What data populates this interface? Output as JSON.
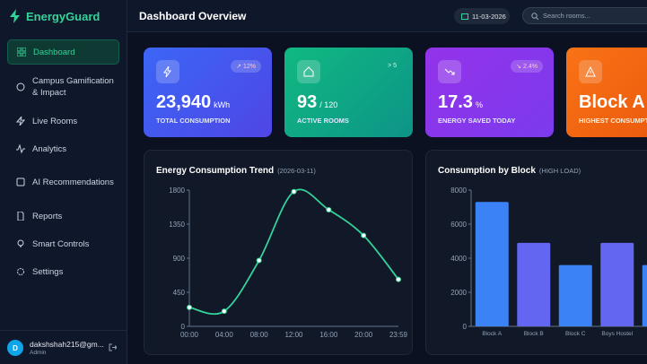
{
  "sidebar": {
    "brand": "EnergyGuard",
    "nav": [
      "Dashboard",
      "Campus Gamification & Impact",
      "Live Rooms",
      "Analytics",
      "AI Recommendations",
      "Reports",
      "Smart Controls",
      "Settings"
    ],
    "user": {
      "initial": "D",
      "email": "dakshshah215@gm...",
      "role": "Admin"
    }
  },
  "header": {
    "title": "Dashboard Overview",
    "date": "11-03-2026",
    "search": "Search rooms..."
  },
  "cards": [
    {
      "value": "23,940",
      "unit": "kWh",
      "label": "TOTAL CONSUMPTION",
      "badge": "12%"
    },
    {
      "value": "93",
      "unit": "/ 120",
      "label": "ACTIVE ROOMS",
      "badge": "> 5"
    },
    {
      "value": "17.3",
      "unit": "%",
      "label": "ENERGY SAVED TODAY",
      "badge": "2.4%"
    },
    {
      "value": "Block A",
      "label": "HIGHEST CONSUMPTION"
    }
  ],
  "chart_data": [
    {
      "type": "line",
      "title": "Energy Consumption Trend",
      "subtitle": "(2026-03-11)",
      "categories": [
        "00:00",
        "04:00",
        "08:00",
        "12:00",
        "16:00",
        "20:00",
        "23:59"
      ],
      "values": [
        250,
        200,
        870,
        1780,
        1540,
        1200,
        620
      ],
      "color": "#34d399",
      "ylim": [
        0,
        1800
      ],
      "yticks": [
        0,
        450,
        900,
        1350,
        1800
      ]
    },
    {
      "type": "bar",
      "title": "Consumption by Block",
      "subtitle": "(HIGH LOAD)",
      "categories": [
        "Block A",
        "Block B",
        "Block C",
        "Boys Hostel",
        null
      ],
      "values": [
        7300,
        4900,
        3600,
        4900,
        3600
      ],
      "colors": [
        "#3b82f6",
        "#6366f1",
        "#3b82f6",
        "#6366f1",
        "#3b82f6"
      ],
      "ylim": [
        0,
        8000
      ],
      "yticks": [
        0,
        2000,
        4000,
        6000,
        8000
      ]
    }
  ]
}
